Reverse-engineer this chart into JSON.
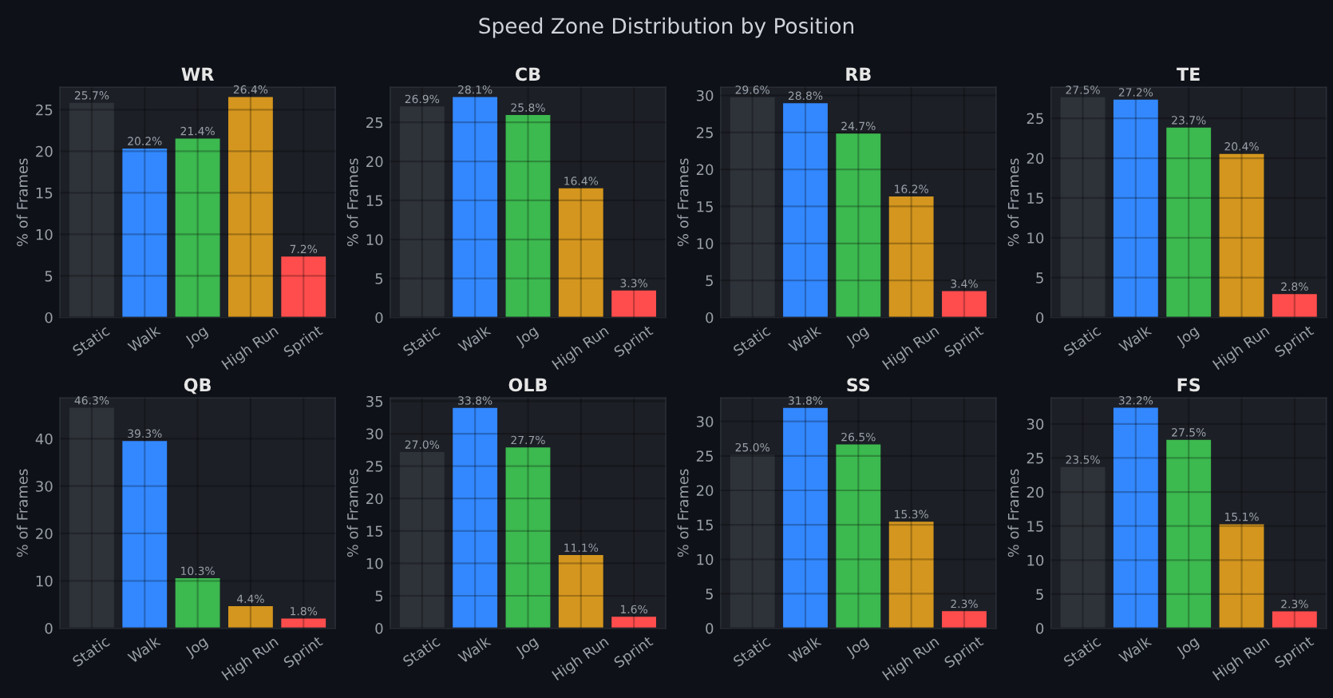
{
  "chart_data": [
    {
      "type": "bar",
      "title": "WR",
      "annotations": [
        "Speed Zone Distribution by Position"
      ],
      "ylabel": "% of Frames",
      "categories": [
        "Static",
        "Walk",
        "Jog",
        "High Run",
        "Sprint"
      ],
      "values": [
        25.7,
        20.2,
        21.4,
        26.4,
        7.2
      ],
      "value_labels": [
        "25.7%",
        "20.2%",
        "21.4%",
        "26.4%",
        "7.2%"
      ],
      "colors": [
        "#2e3239",
        "#3388ff",
        "#3cb94f",
        "#d4961e",
        "#ff4d4d"
      ],
      "ylim": [
        0,
        27.7
      ],
      "yticks": [
        0,
        5,
        10,
        15,
        20,
        25
      ],
      "grid": true
    },
    {
      "type": "bar",
      "title": "CB",
      "ylabel": "% of Frames",
      "categories": [
        "Static",
        "Walk",
        "Jog",
        "High Run",
        "Sprint"
      ],
      "values": [
        26.9,
        28.1,
        25.8,
        16.4,
        3.3
      ],
      "value_labels": [
        "26.9%",
        "28.1%",
        "25.8%",
        "16.4%",
        "3.3%"
      ],
      "colors": [
        "#2e3239",
        "#3388ff",
        "#3cb94f",
        "#d4961e",
        "#ff4d4d"
      ],
      "ylim": [
        0,
        29.5
      ],
      "yticks": [
        0,
        5,
        10,
        15,
        20,
        25
      ],
      "grid": true
    },
    {
      "type": "bar",
      "title": "RB",
      "ylabel": "% of Frames",
      "categories": [
        "Static",
        "Walk",
        "Jog",
        "High Run",
        "Sprint"
      ],
      "values": [
        29.6,
        28.8,
        24.7,
        16.2,
        3.4
      ],
      "value_labels": [
        "29.6%",
        "28.8%",
        "24.7%",
        "16.2%",
        "3.4%"
      ],
      "colors": [
        "#2e3239",
        "#3388ff",
        "#3cb94f",
        "#d4961e",
        "#ff4d4d"
      ],
      "ylim": [
        0,
        31.1
      ],
      "yticks": [
        0,
        5,
        10,
        15,
        20,
        25,
        30
      ],
      "grid": true
    },
    {
      "type": "bar",
      "title": "TE",
      "ylabel": "% of Frames",
      "categories": [
        "Static",
        "Walk",
        "Jog",
        "High Run",
        "Sprint"
      ],
      "values": [
        27.5,
        27.2,
        23.7,
        20.4,
        2.8
      ],
      "value_labels": [
        "27.5%",
        "27.2%",
        "23.7%",
        "20.4%",
        "2.8%"
      ],
      "colors": [
        "#2e3239",
        "#3388ff",
        "#3cb94f",
        "#d4961e",
        "#ff4d4d"
      ],
      "ylim": [
        0,
        28.9
      ],
      "yticks": [
        0,
        5,
        10,
        15,
        20,
        25
      ],
      "grid": true
    },
    {
      "type": "bar",
      "title": "QB",
      "ylabel": "% of Frames",
      "categories": [
        "Static",
        "Walk",
        "Jog",
        "High Run",
        "Sprint"
      ],
      "values": [
        46.3,
        39.3,
        10.3,
        4.4,
        1.8
      ],
      "value_labels": [
        "46.3%",
        "39.3%",
        "10.3%",
        "4.4%",
        "1.8%"
      ],
      "colors": [
        "#2e3239",
        "#3388ff",
        "#3cb94f",
        "#d4961e",
        "#ff4d4d"
      ],
      "ylim": [
        0,
        48.6
      ],
      "yticks": [
        0,
        10,
        20,
        30,
        40
      ],
      "grid": true
    },
    {
      "type": "bar",
      "title": "OLB",
      "ylabel": "% of Frames",
      "categories": [
        "Static",
        "Walk",
        "Jog",
        "High Run",
        "Sprint"
      ],
      "values": [
        27.0,
        33.8,
        27.7,
        11.1,
        1.6
      ],
      "value_labels": [
        "27.0%",
        "33.8%",
        "27.7%",
        "11.1%",
        "1.6%"
      ],
      "colors": [
        "#2e3239",
        "#3388ff",
        "#3cb94f",
        "#d4961e",
        "#ff4d4d"
      ],
      "ylim": [
        0,
        35.5
      ],
      "yticks": [
        0,
        5,
        10,
        15,
        20,
        25,
        30,
        35
      ],
      "grid": true
    },
    {
      "type": "bar",
      "title": "SS",
      "ylabel": "% of Frames",
      "categories": [
        "Static",
        "Walk",
        "Jog",
        "High Run",
        "Sprint"
      ],
      "values": [
        25.0,
        31.8,
        26.5,
        15.3,
        2.3
      ],
      "value_labels": [
        "25.0%",
        "31.8%",
        "26.5%",
        "15.3%",
        "2.3%"
      ],
      "colors": [
        "#2e3239",
        "#3388ff",
        "#3cb94f",
        "#d4961e",
        "#ff4d4d"
      ],
      "ylim": [
        0,
        33.4
      ],
      "yticks": [
        0,
        5,
        10,
        15,
        20,
        25,
        30
      ],
      "grid": true
    },
    {
      "type": "bar",
      "title": "FS",
      "ylabel": "% of Frames",
      "categories": [
        "Static",
        "Walk",
        "Jog",
        "High Run",
        "Sprint"
      ],
      "values": [
        23.5,
        32.2,
        27.5,
        15.1,
        2.3
      ],
      "value_labels": [
        "23.5%",
        "32.2%",
        "27.5%",
        "15.1%",
        "2.3%"
      ],
      "colors": [
        "#2e3239",
        "#3388ff",
        "#3cb94f",
        "#d4961e",
        "#ff4d4d"
      ],
      "ylim": [
        0,
        33.8
      ],
      "yticks": [
        0,
        5,
        10,
        15,
        20,
        25,
        30
      ],
      "grid": true
    }
  ]
}
